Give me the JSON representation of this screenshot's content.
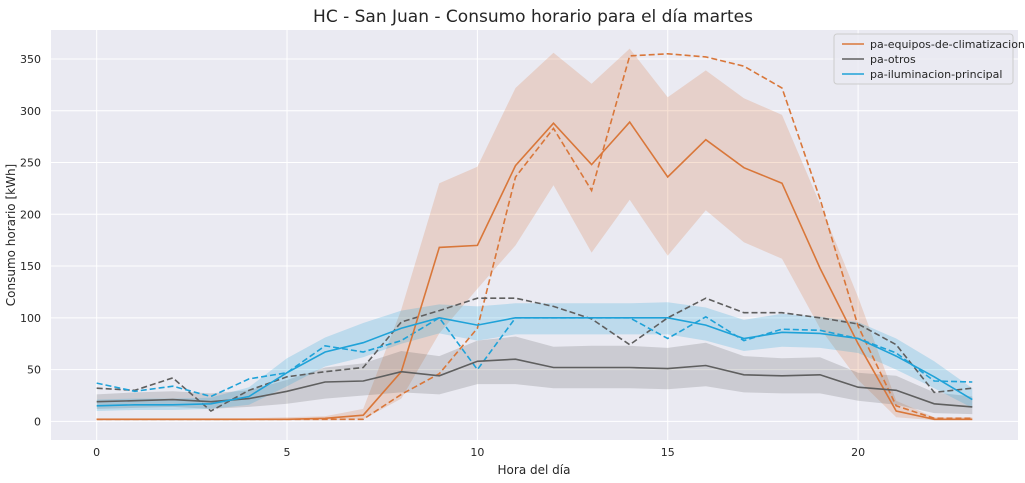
{
  "chart_data": {
    "type": "line",
    "title": "HC - San Juan - Consumo horario para el día martes",
    "xlabel": "Hora del día",
    "ylabel": "Consumo horario [kWh]",
    "xlim": [
      -1.2,
      24.2
    ],
    "ylim": [
      -18,
      378
    ],
    "xticks": [
      0,
      5,
      10,
      15,
      20
    ],
    "yticks": [
      0,
      50,
      100,
      150,
      200,
      250,
      300,
      350
    ],
    "grid": true,
    "legend_position": "top-right",
    "x": [
      0,
      1,
      2,
      3,
      4,
      5,
      6,
      7,
      8,
      9,
      10,
      11,
      12,
      13,
      14,
      15,
      16,
      17,
      18,
      19,
      20,
      21,
      22,
      23
    ],
    "series": [
      {
        "name": "pa-equipos-de-climatizacion",
        "color": "#d9773a",
        "mean": [
          2,
          2,
          2,
          2,
          2,
          2,
          3,
          6,
          48,
          168,
          170,
          247,
          288,
          248,
          289,
          236,
          272,
          245,
          230,
          148,
          75,
          10,
          2,
          2
        ],
        "band_low": [
          1,
          1,
          1,
          1,
          1,
          1,
          1,
          2,
          22,
          85,
          128,
          170,
          228,
          163,
          214,
          160,
          204,
          173,
          157,
          90,
          40,
          4,
          1,
          1
        ],
        "band_high": [
          3,
          3,
          3,
          3,
          3,
          4,
          5,
          12,
          108,
          230,
          246,
          322,
          356,
          326,
          360,
          313,
          339,
          312,
          296,
          210,
          120,
          20,
          4,
          4
        ],
        "reference": [
          2,
          2,
          2,
          2,
          2,
          2,
          2,
          2,
          26,
          46,
          90,
          236,
          283,
          223,
          353,
          355,
          352,
          343,
          322,
          215,
          92,
          15,
          3,
          3
        ]
      },
      {
        "name": "pa-otros",
        "color": "#5f5f5f",
        "mean": [
          19,
          20,
          21,
          19,
          22,
          29,
          38,
          39,
          48,
          44,
          58,
          60,
          52,
          52,
          52,
          51,
          54,
          45,
          44,
          45,
          33,
          30,
          17,
          14
        ],
        "band_low": [
          12,
          13,
          14,
          12,
          14,
          17,
          22,
          25,
          28,
          26,
          36,
          36,
          32,
          32,
          32,
          31,
          34,
          28,
          27,
          27,
          20,
          16,
          8,
          7
        ],
        "band_high": [
          26,
          28,
          29,
          27,
          30,
          40,
          52,
          56,
          68,
          63,
          78,
          82,
          72,
          73,
          73,
          71,
          76,
          63,
          61,
          62,
          47,
          44,
          28,
          24
        ],
        "reference": [
          32,
          30,
          42,
          10,
          30,
          43,
          48,
          52,
          96,
          107,
          119,
          119,
          111,
          99,
          74,
          100,
          119,
          105,
          105,
          100,
          94,
          74,
          28,
          32
        ]
      },
      {
        "name": "pa-iluminacion-principal",
        "color": "#1fa2d8",
        "mean": [
          15,
          16,
          16,
          17,
          24,
          47,
          67,
          76,
          90,
          100,
          93,
          100,
          100,
          100,
          100,
          100,
          93,
          80,
          86,
          85,
          80,
          63,
          43,
          21
        ],
        "band_low": [
          10,
          11,
          11,
          12,
          16,
          34,
          53,
          62,
          75,
          85,
          78,
          84,
          84,
          84,
          84,
          84,
          78,
          68,
          72,
          71,
          66,
          50,
          32,
          13
        ],
        "band_high": [
          21,
          22,
          22,
          23,
          33,
          61,
          81,
          95,
          107,
          113,
          111,
          114,
          114,
          114,
          114,
          115,
          110,
          98,
          104,
          101,
          96,
          80,
          58,
          32
        ],
        "reference": [
          37,
          29,
          34,
          24,
          41,
          47,
          73,
          67,
          78,
          100,
          50,
          100,
          100,
          100,
          100,
          80,
          101,
          78,
          89,
          88,
          80,
          66,
          39,
          38
        ]
      }
    ]
  }
}
